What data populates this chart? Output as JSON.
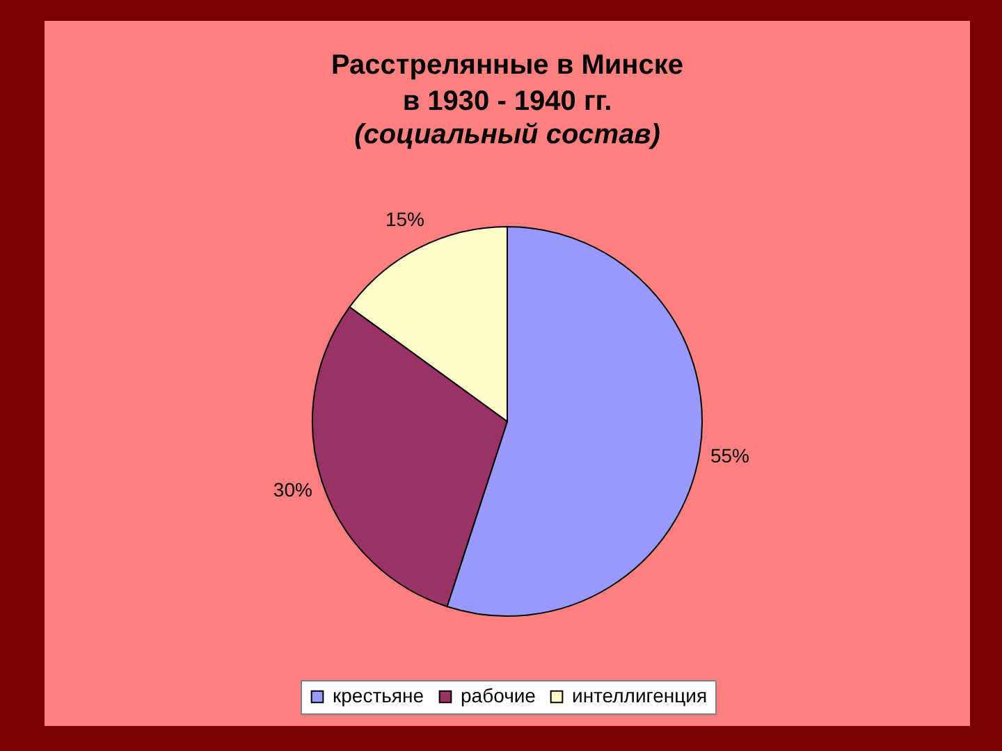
{
  "chart_data": {
    "type": "pie",
    "title": "Расстрелянные в Минске\nв 1930 - 1940 гг.",
    "subtitle": "(социальный состав)",
    "categories": [
      "крестьяне",
      "рабочие",
      "интеллигенция"
    ],
    "values": [
      55,
      30,
      15
    ],
    "colors": [
      "#9999ff",
      "#993366",
      "#ffffcc"
    ],
    "value_labels": [
      "55%",
      "30%",
      "15%"
    ],
    "legend": "bottom"
  }
}
